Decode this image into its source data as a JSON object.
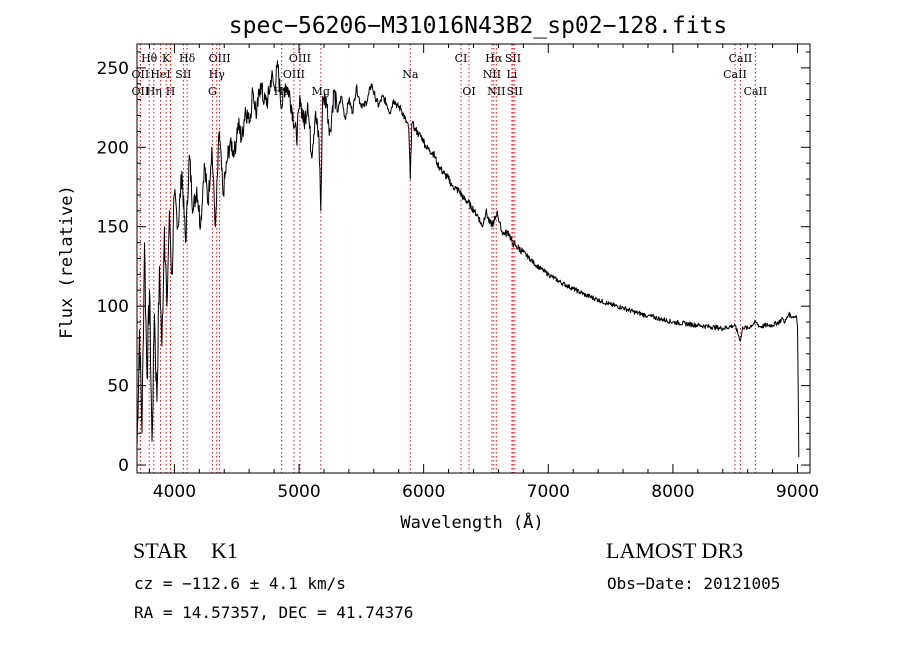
{
  "chart_data": {
    "type": "line",
    "title": "spec−56206−M31016N43B2_sp02−128.fits",
    "xlabel": "Wavelength (Å)",
    "ylabel": "Flux (relative)",
    "xlim": [
      3700,
      9100
    ],
    "ylim": [
      -5,
      265
    ],
    "xticks": [
      4000,
      5000,
      6000,
      7000,
      8000,
      9000
    ],
    "xtick_labels": [
      "4000",
      "5000",
      "6000",
      "7000",
      "8000",
      "9000"
    ],
    "yticks": [
      0,
      50,
      100,
      150,
      200,
      250
    ],
    "ytick_labels": [
      "0",
      "50",
      "100",
      "150",
      "200",
      "250"
    ],
    "series": [
      {
        "name": "flux",
        "x": [
          3700,
          3720,
          3740,
          3760,
          3780,
          3800,
          3820,
          3840,
          3860,
          3880,
          3900,
          3920,
          3940,
          3960,
          3980,
          4000,
          4030,
          4060,
          4090,
          4120,
          4150,
          4180,
          4210,
          4240,
          4270,
          4300,
          4330,
          4360,
          4390,
          4420,
          4450,
          4480,
          4510,
          4540,
          4570,
          4600,
          4630,
          4660,
          4690,
          4720,
          4750,
          4780,
          4800,
          4830,
          4860,
          4890,
          4920,
          4950,
          4980,
          5010,
          5040,
          5070,
          5100,
          5130,
          5160,
          5175,
          5190,
          5220,
          5250,
          5280,
          5310,
          5340,
          5370,
          5400,
          5430,
          5460,
          5490,
          5520,
          5550,
          5580,
          5610,
          5640,
          5670,
          5700,
          5730,
          5760,
          5790,
          5820,
          5850,
          5880,
          5893,
          5905,
          5930,
          5960,
          5990,
          6020,
          6050,
          6080,
          6110,
          6140,
          6170,
          6200,
          6230,
          6260,
          6290,
          6320,
          6350,
          6380,
          6410,
          6440,
          6470,
          6500,
          6530,
          6563,
          6590,
          6620,
          6650,
          6680,
          6710,
          6740,
          6800,
          6900,
          7000,
          7100,
          7200,
          7300,
          7400,
          7500,
          7600,
          7700,
          7800,
          7900,
          8000,
          8100,
          8200,
          8300,
          8400,
          8500,
          8542,
          8560,
          8600,
          8662,
          8700,
          8750,
          8800,
          8850,
          8880,
          8900,
          8930,
          8960,
          8990,
          9000,
          9010
        ],
        "values": [
          10,
          85,
          20,
          140,
          55,
          110,
          15,
          95,
          40,
          125,
          75,
          150,
          100,
          160,
          120,
          170,
          150,
          185,
          140,
          195,
          160,
          175,
          150,
          190,
          165,
          200,
          150,
          210,
          170,
          190,
          205,
          195,
          215,
          205,
          225,
          215,
          235,
          220,
          240,
          228,
          230,
          245,
          238,
          250,
          225,
          240,
          235,
          222,
          205,
          230,
          215,
          228,
          195,
          220,
          205,
          160,
          232,
          228,
          210,
          235,
          222,
          232,
          218,
          230,
          222,
          238,
          228,
          226,
          230,
          240,
          232,
          226,
          232,
          228,
          222,
          230,
          226,
          224,
          218,
          212,
          180,
          215,
          212,
          208,
          206,
          200,
          198,
          196,
          190,
          186,
          183,
          180,
          176,
          174,
          172,
          168,
          166,
          163,
          160,
          156,
          150,
          160,
          152,
          152,
          160,
          148,
          145,
          147,
          140,
          138,
          134,
          126,
          120,
          115,
          111,
          107,
          104,
          101,
          99,
          96,
          94,
          92,
          90,
          89,
          88,
          87,
          86,
          88,
          78,
          87,
          86,
          90,
          87,
          88,
          88,
          90,
          92,
          90,
          95,
          93,
          94,
          88,
          5
        ]
      }
    ],
    "line_marks": [
      {
        "label": "Hθ",
        "x": 3798,
        "row": 0
      },
      {
        "label": "K",
        "x": 3934,
        "row": 0
      },
      {
        "label": "Hδ",
        "x": 4102,
        "row": 0
      },
      {
        "label": "OIII",
        "x": 4363,
        "row": 0
      },
      {
        "label": "OIII",
        "x": 5007,
        "row": 0
      },
      {
        "label": "CI",
        "x": 6300,
        "row": 0
      },
      {
        "label": "Hα",
        "x": 6563,
        "row": 0
      },
      {
        "label": "SII",
        "x": 6717,
        "row": 0
      },
      {
        "label": "CaII",
        "x": 8542,
        "row": 0
      },
      {
        "label": "OII",
        "x": 3727,
        "row": 1
      },
      {
        "label": "HeI",
        "x": 3889,
        "row": 1
      },
      {
        "label": "SII",
        "x": 4072,
        "row": 1
      },
      {
        "label": "Hγ",
        "x": 4340,
        "row": 1
      },
      {
        "label": "OIII",
        "x": 4959,
        "row": 1
      },
      {
        "label": "NII",
        "x": 6548,
        "row": 1
      },
      {
        "label": "Li",
        "x": 6708,
        "row": 1
      },
      {
        "label": "CaII",
        "x": 8498,
        "row": 1
      },
      {
        "label": "OII",
        "x": 3727,
        "row": 2
      },
      {
        "label": "Hη",
        "x": 3835,
        "row": 2
      },
      {
        "label": "H",
        "x": 3969,
        "row": 2
      },
      {
        "label": "G",
        "x": 4305,
        "row": 2
      },
      {
        "label": "Hβ",
        "x": 4861,
        "row": 2
      },
      {
        "label": "Mg",
        "x": 5175,
        "row": 2
      },
      {
        "label": "Na",
        "x": 5893,
        "row": 1
      },
      {
        "label": "OI",
        "x": 6364,
        "row": 2
      },
      {
        "label": "NII",
        "x": 6583,
        "row": 2
      },
      {
        "label": "SII",
        "x": 6731,
        "row": 2
      },
      {
        "label": "CaII",
        "x": 8662,
        "row": 2
      }
    ]
  },
  "footer": {
    "object_class": "STAR K1",
    "survey": "LAMOST DR3",
    "redshift": "cz = −112.6 ± 4.1 km/s",
    "obs_date": "Obs−Date: 20121005",
    "coordinates": "RA = 14.57357, DEC = 41.74376"
  },
  "colors": {
    "spectrum": "#000000",
    "line_marks": "#d21010",
    "axes": "#000000",
    "background": "#ffffff"
  }
}
